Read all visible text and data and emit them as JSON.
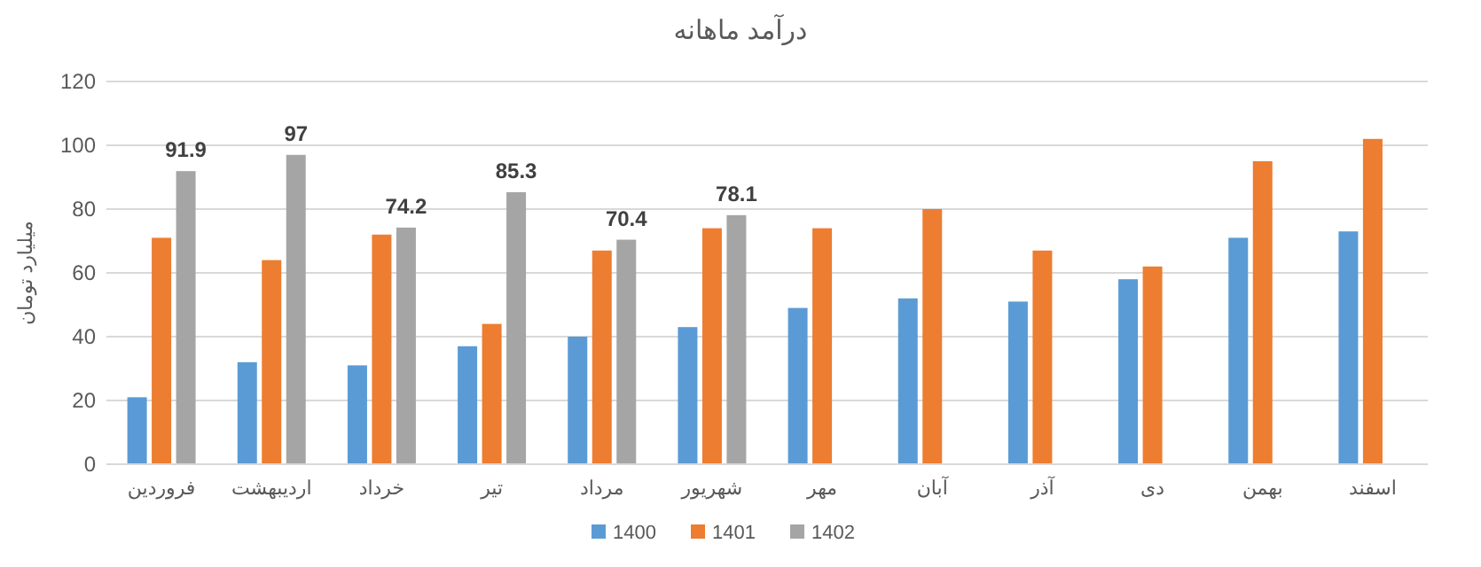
{
  "chart_data": {
    "type": "bar",
    "title": "درآمد ماهانه",
    "ylabel": "میلیارد تومان",
    "categories": [
      "فروردین",
      "اردیبهشت",
      "خرداد",
      "تیر",
      "مرداد",
      "شهریور",
      "مهر",
      "آبان",
      "آذر",
      "دی",
      "بهمن",
      "اسفند"
    ],
    "series": [
      {
        "name": "1400",
        "color": "#5b9bd5",
        "values": [
          21,
          32,
          31,
          37,
          40,
          43,
          49,
          52,
          51,
          58,
          71,
          73
        ]
      },
      {
        "name": "1401",
        "color": "#ed7d31",
        "values": [
          71,
          64,
          72,
          44,
          67,
          74,
          74,
          80,
          67,
          62,
          95,
          102
        ]
      },
      {
        "name": "1402",
        "color": "#a5a5a5",
        "values": [
          91.9,
          97,
          74.2,
          85.3,
          70.4,
          78.1,
          null,
          null,
          null,
          null,
          null,
          null
        ],
        "value_labels": [
          "91.9",
          "97",
          "74.2",
          "85.3",
          "70.4",
          "78.1",
          null,
          null,
          null,
          null,
          null,
          null
        ]
      }
    ],
    "ylim": [
      0,
      120
    ],
    "yticks": [
      0,
      20,
      40,
      60,
      80,
      100,
      120
    ],
    "grid": "y",
    "legend": "bottom"
  }
}
